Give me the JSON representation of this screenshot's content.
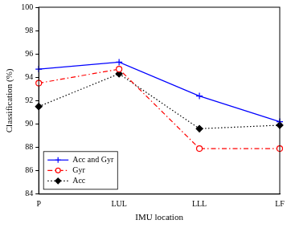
{
  "chart_data": {
    "type": "line",
    "x_label": "IMU location",
    "y_label": "Classification (%)",
    "categories": [
      "P",
      "LUL",
      "LLL",
      "LF"
    ],
    "series": [
      {
        "name": "Acc and Gyr",
        "color": "#0000ff",
        "marker": "plus",
        "line_style": "solid",
        "values": [
          94.7,
          95.3,
          92.4,
          90.2
        ]
      },
      {
        "name": "Gyr",
        "color": "#ff0000",
        "marker": "circle",
        "line_style": "dashdot",
        "values": [
          93.5,
          94.7,
          87.9,
          87.9
        ]
      },
      {
        "name": "Acc",
        "color": "#000000",
        "marker": "diamond",
        "line_style": "dotted",
        "values": [
          91.5,
          94.3,
          89.6,
          89.9
        ]
      }
    ],
    "ylim": [
      84,
      100
    ],
    "yticks": [
      84,
      86,
      88,
      90,
      92,
      94,
      96,
      98,
      100
    ],
    "grid": false,
    "legend": "lower left"
  }
}
